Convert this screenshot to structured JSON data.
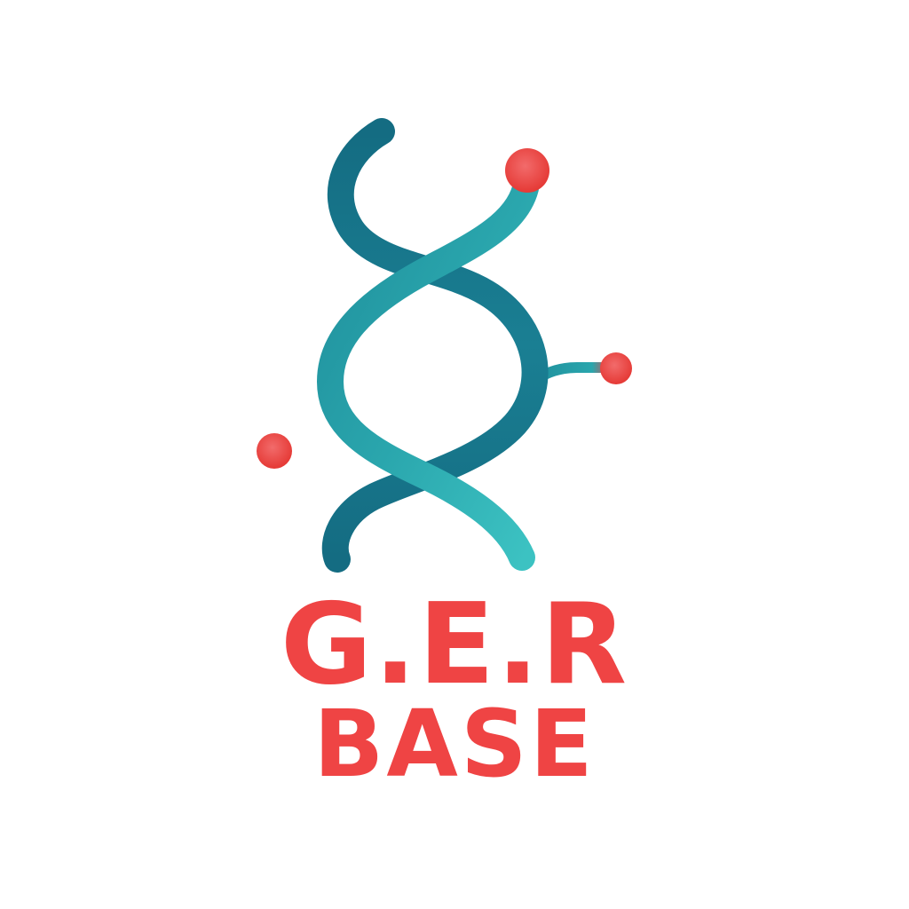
{
  "logo": {
    "name_line1": "G.E.R",
    "name_line2": "BASE",
    "icon": "dna-helix-icon"
  },
  "colors": {
    "background": "#ffffff",
    "text": "#ef4444",
    "strand_dark": "#146c82",
    "strand_mid": "#1f8f9c",
    "strand_light": "#3cc2c2",
    "node": "#ef4444"
  }
}
